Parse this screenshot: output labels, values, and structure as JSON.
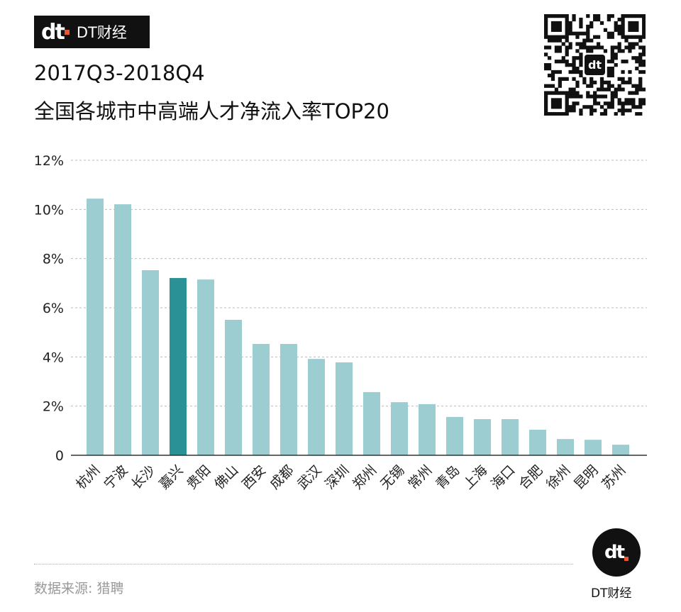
{
  "brand": {
    "logo_mark": "dt",
    "name": "DT财经"
  },
  "title_line1": "2017Q3-2018Q4",
  "title_line2": "全国各城市中高端人才净流入率TOP20",
  "source": "数据来源: 猎聘",
  "colors": {
    "bar": "#9ccdd0",
    "highlight": "#2a9196"
  },
  "chart_data": {
    "type": "bar",
    "title": "2017Q3-2018Q4 全国各城市中高端人才净流入率TOP20",
    "xlabel": "",
    "ylabel": "",
    "ylim": [
      0,
      12
    ],
    "yticks": [
      0,
      2,
      4,
      6,
      8,
      10,
      12
    ],
    "ytick_labels": [
      "0",
      "2%",
      "4%",
      "6%",
      "8%",
      "10%",
      "12%"
    ],
    "grid": true,
    "highlight": "嘉兴",
    "categories": [
      "杭州",
      "宁波",
      "长沙",
      "嘉兴",
      "贵阳",
      "佛山",
      "西安",
      "成都",
      "武汉",
      "深圳",
      "郑州",
      "无锡",
      "常州",
      "青岛",
      "上海",
      "海口",
      "合肥",
      "徐州",
      "昆明",
      "苏州"
    ],
    "values": [
      10.44,
      10.21,
      7.53,
      7.21,
      7.15,
      5.51,
      4.53,
      4.53,
      3.92,
      3.78,
      2.57,
      2.16,
      2.08,
      1.56,
      1.47,
      1.47,
      1.04,
      0.66,
      0.63,
      0.43
    ]
  }
}
